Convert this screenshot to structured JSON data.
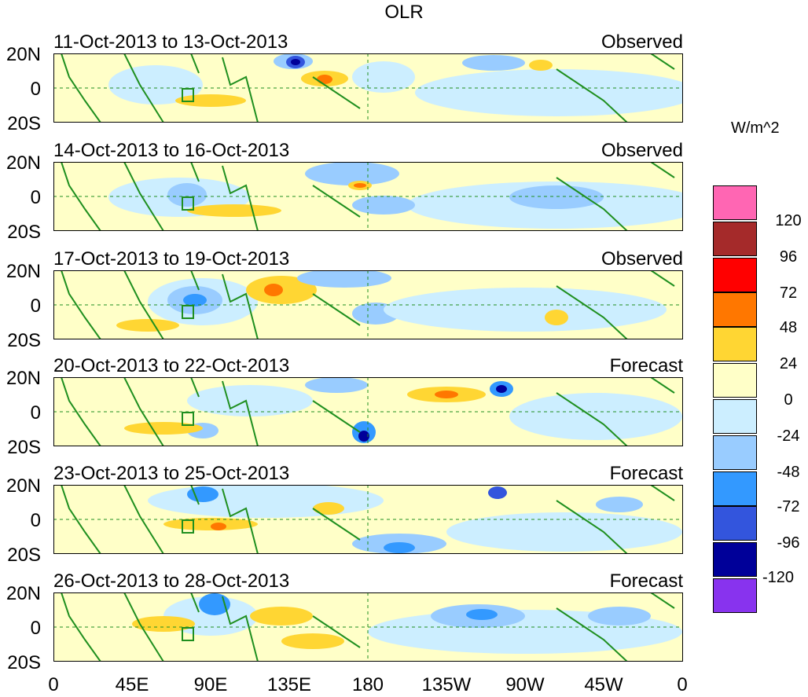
{
  "title": "OLR",
  "unit": "W/m^2",
  "y_ticks": [
    "20N",
    "0",
    "20S"
  ],
  "x_ticks": [
    "0",
    "45E",
    "90E",
    "135E",
    "180",
    "135W",
    "90W",
    "45W",
    "0"
  ],
  "panels": [
    {
      "date": "11-Oct-2013 to 13-Oct-2013",
      "type": "Observed"
    },
    {
      "date": "14-Oct-2013 to 16-Oct-2013",
      "type": "Observed"
    },
    {
      "date": "17-Oct-2013 to 19-Oct-2013",
      "type": "Observed"
    },
    {
      "date": "20-Oct-2013 to 22-Oct-2013",
      "type": "Forecast"
    },
    {
      "date": "23-Oct-2013 to 25-Oct-2013",
      "type": "Forecast"
    },
    {
      "date": "26-Oct-2013 to 28-Oct-2013",
      "type": "Forecast"
    }
  ],
  "colorbar": {
    "labels": [
      "120",
      "96",
      "72",
      "48",
      "24",
      "0",
      "-24",
      "-48",
      "-72",
      "-96",
      "-120"
    ],
    "colors": [
      "#ff66b3",
      "#a52a2a",
      "#ff0000",
      "#ff7700",
      "#ffd633",
      "#ffffc8",
      "#cceeff",
      "#99ccff",
      "#3399ff",
      "#3355dd",
      "#000099",
      "#8833ee"
    ]
  },
  "colors": {
    "land": "#1f8f1f",
    "light_pos": "#ffffc8",
    "light_neg": "#cceeff"
  }
}
